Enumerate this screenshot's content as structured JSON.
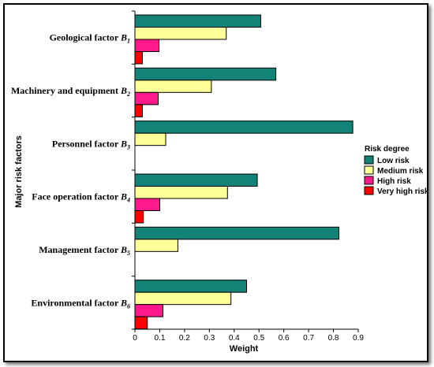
{
  "chart_data": {
    "type": "bar",
    "orientation": "horizontal",
    "xlabel": "Weight",
    "ylabel": "Major risk factors",
    "xlim": [
      0,
      0.9
    ],
    "xticks": [
      "0",
      "0.1",
      "0.2",
      "0.3",
      "0.4",
      "0.5",
      "0.6",
      "0.7",
      "0.8",
      "0.9"
    ],
    "grid": false,
    "legend_position": "right",
    "categories": [
      {
        "name": "Geological factor ",
        "sub": "1"
      },
      {
        "name": "Machinery and equipment ",
        "sub": "2"
      },
      {
        "name": "Personnel factor ",
        "sub": "3"
      },
      {
        "name": "Face operation factor ",
        "sub": "4"
      },
      {
        "name": "Management factor ",
        "sub": "5"
      },
      {
        "name": "Environmental factor ",
        "sub": "6"
      }
    ],
    "category_letter": "B",
    "legend_title": "Risk degree",
    "series": [
      {
        "name": "Low risk",
        "color": "#138277",
        "values": [
          0.507,
          0.568,
          0.878,
          0.493,
          0.822,
          0.45
        ]
      },
      {
        "name": "Medium risk",
        "color": "#ffff99",
        "values": [
          0.368,
          0.308,
          0.124,
          0.373,
          0.173,
          0.387
        ]
      },
      {
        "name": "High risk",
        "color": "#ff1a8c",
        "values": [
          0.097,
          0.094,
          0.0,
          0.1,
          0.0,
          0.113
        ]
      },
      {
        "name": "Very high risk",
        "color": "#ff0000",
        "values": [
          0.03,
          0.03,
          0.0,
          0.034,
          0.0,
          0.05
        ]
      }
    ]
  }
}
